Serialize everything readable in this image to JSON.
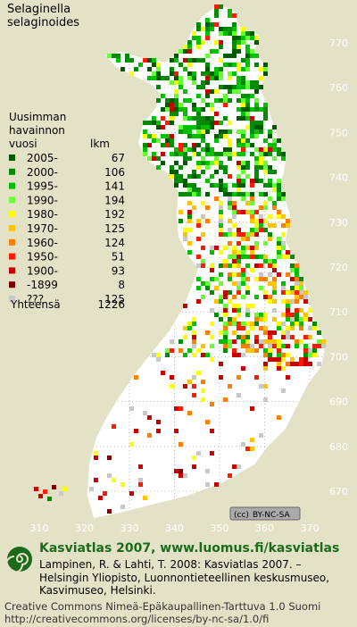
{
  "title": [
    "Selaginella",
    "selaginoides"
  ],
  "legend": {
    "heading": [
      "Uusimman",
      "havainnon",
      "vuosi"
    ],
    "count_heading": "lkm",
    "rows": [
      {
        "label": "2005-",
        "count": 67,
        "color": "#005a00"
      },
      {
        "label": "2000-",
        "count": 106,
        "color": "#008c00"
      },
      {
        "label": "1995-",
        "count": 141,
        "color": "#00c000"
      },
      {
        "label": "1990-",
        "count": 194,
        "color": "#66ff33"
      },
      {
        "label": "1980-",
        "count": 192,
        "color": "#ffff00"
      },
      {
        "label": "1970-",
        "count": 125,
        "color": "#ffc400"
      },
      {
        "label": "1960-",
        "count": 124,
        "color": "#ff8000"
      },
      {
        "label": "1950-",
        "count": 51,
        "color": "#ff1a00"
      },
      {
        "label": "1900-",
        "count": 93,
        "color": "#c80000"
      },
      {
        "label": "-1899",
        "count": 8,
        "color": "#7a0000"
      },
      {
        "label": "???",
        "count": 125,
        "color": "#c8c8c8"
      }
    ],
    "total_label": "Yhteensä",
    "total": 1226
  },
  "grid": {
    "y_labels": [
      770,
      760,
      750,
      740,
      730,
      720,
      710,
      700,
      690,
      680,
      670
    ],
    "x_labels": [
      310,
      320,
      330,
      340,
      350,
      360,
      370
    ]
  },
  "license_badge": "BY-NC-SA",
  "footer": {
    "site": "Kasviatlas 2007, www.luomus.fi/kasviatlas",
    "citation": [
      "Lampinen, R. & Lahti, T. 2008: Kasviatlas 2007. –",
      "Helsingin Yliopisto, Luonnontieteellinen keskusmuseo,",
      "Kasvimuseo, Helsinki."
    ],
    "license": [
      "Creative Commons Nimeä-Epäkaupallinen-Tarttuva 1.0 Suomi",
      "http://creativecommons.org/licenses/by-nc-sa/1.0/fi"
    ]
  }
}
